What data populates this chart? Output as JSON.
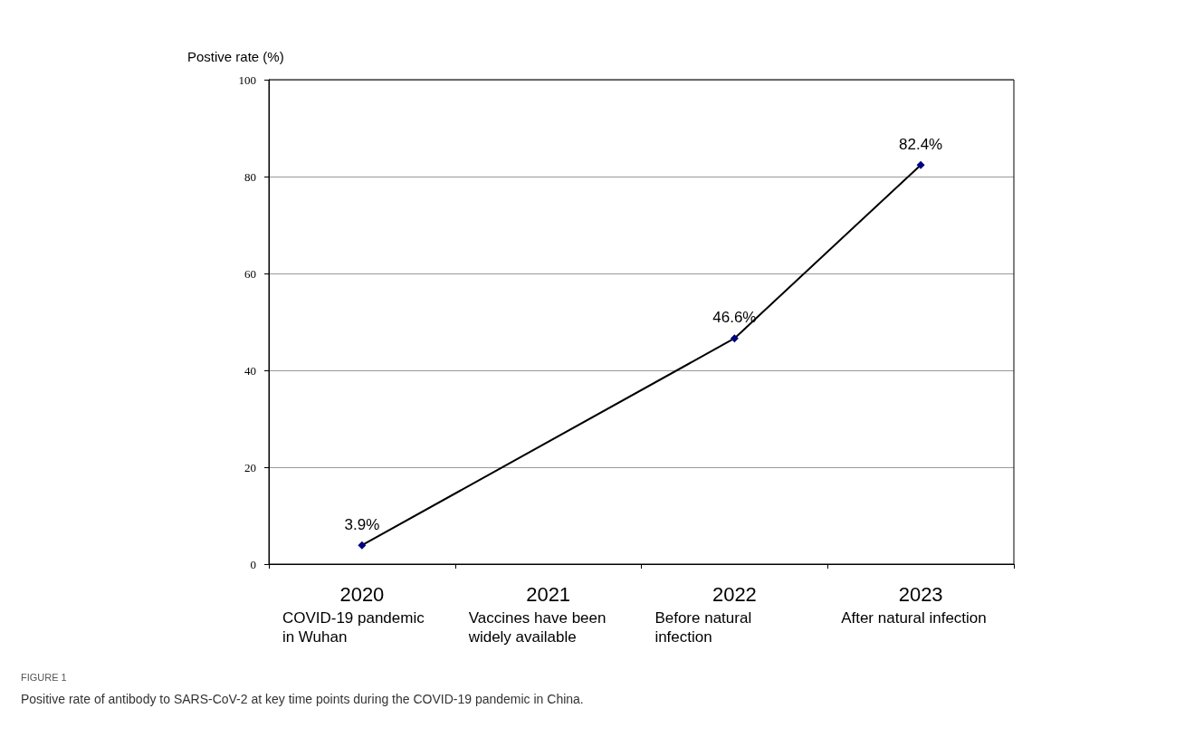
{
  "chart_data": {
    "type": "line",
    "title": "FIGURE 1",
    "subtitle": "Positive rate of antibody to SARS-CoV-2 at key time points during the COVID-19 pandemic in China.",
    "ylabel": "Postive rate (%)",
    "categories": [
      "2020",
      "2021",
      "2022",
      "2023"
    ],
    "series": [
      {
        "color": "#000080",
        "values": [
          3.9,
          null,
          46.6,
          82.4
        ],
        "value_labels": [
          "3.9%",
          null,
          "46.6%",
          "82.4%"
        ]
      }
    ],
    "ylim": [
      0,
      100
    ],
    "yticks": [
      0,
      20,
      40,
      60,
      80,
      100
    ],
    "grid": "y",
    "marker": "diamond",
    "line_style": "solid",
    "annotations": [
      "COVID-19 pandemic in Wuhan",
      "Vaccines have been widely available",
      "Before natural infection",
      "After natural infection"
    ]
  }
}
